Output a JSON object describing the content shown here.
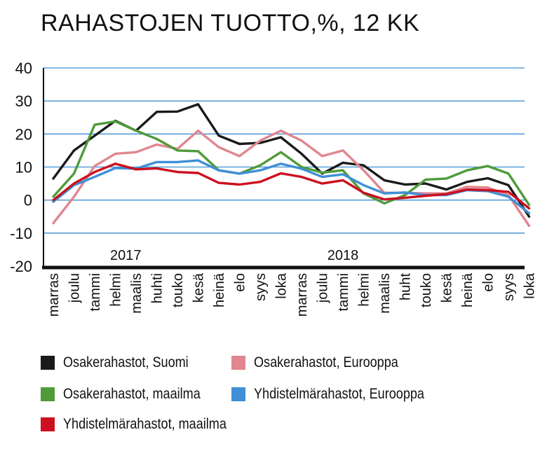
{
  "chart_data": {
    "type": "line",
    "title": "RAHASTOJEN TUOTTO,%, 12 KK",
    "xlabel": "",
    "ylabel": "",
    "ylim": [
      -20,
      40
    ],
    "yticks": [
      40,
      30,
      20,
      10,
      0,
      -10,
      -20
    ],
    "grid": true,
    "legend_position": "bottom",
    "year_labels": [
      {
        "label": "2017",
        "index": 3.5
      },
      {
        "label": "2018",
        "index": 14
      }
    ],
    "categories": [
      "marras",
      "joulu",
      "tammi",
      "helmi",
      "maalis",
      "huhti",
      "touko",
      "kesä",
      "heinä",
      "elo",
      "syys",
      "loka",
      "marras",
      "joulu",
      "tammi",
      "helmi",
      "maalis",
      "huht",
      "touko",
      "kesä",
      "heinä",
      "elo",
      "syys",
      "loka"
    ],
    "series": [
      {
        "name": "Osakerahastot, Suomi",
        "color": "#1a1a1a",
        "values": [
          6.5,
          15,
          19.5,
          24,
          21,
          26.7,
          26.8,
          29,
          19.5,
          17,
          17.3,
          19,
          14,
          8,
          11.3,
          10.5,
          6,
          4.7,
          5,
          3.2,
          5.5,
          6.6,
          4.5,
          -5
        ]
      },
      {
        "name": "Osakerahastot, Eurooppa",
        "color": "#e0868f",
        "values": [
          -7,
          1,
          10.3,
          14,
          14.5,
          16.8,
          15.5,
          21,
          16,
          13.3,
          18,
          21,
          18,
          13.3,
          15,
          9,
          2.2,
          2.2,
          2,
          2,
          4,
          3.8,
          1.5,
          -7.8
        ]
      },
      {
        "name": "Osakerahastot, maailma",
        "color": "#4e9b3a",
        "values": [
          1,
          8,
          22.8,
          23.8,
          21,
          18.5,
          15,
          14.8,
          9,
          8,
          10.5,
          14.5,
          10,
          8.3,
          9,
          2,
          -1,
          1.5,
          6.2,
          6.5,
          9,
          10.3,
          8,
          -1.5
        ]
      },
      {
        "name": "Yhdistelmärahastot, Eurooppa",
        "color": "#3f8fd6",
        "values": [
          -0.5,
          4.5,
          7,
          9.7,
          9.5,
          11.5,
          11.5,
          12,
          9,
          8,
          9,
          11,
          9.5,
          7,
          7.8,
          4.5,
          2,
          2.3,
          1.5,
          1.5,
          3,
          2.7,
          1,
          -4
        ]
      },
      {
        "name": "Yhdistelmärahastot, maailma",
        "color": "#cc1020",
        "values": [
          0,
          5,
          8.5,
          11,
          9.3,
          9.6,
          8.5,
          8.2,
          5.2,
          4.7,
          5.5,
          8.1,
          7,
          5,
          6,
          2.2,
          0.2,
          0.7,
          1.3,
          1.8,
          3.2,
          3,
          2.5,
          -2.5
        ]
      }
    ]
  }
}
